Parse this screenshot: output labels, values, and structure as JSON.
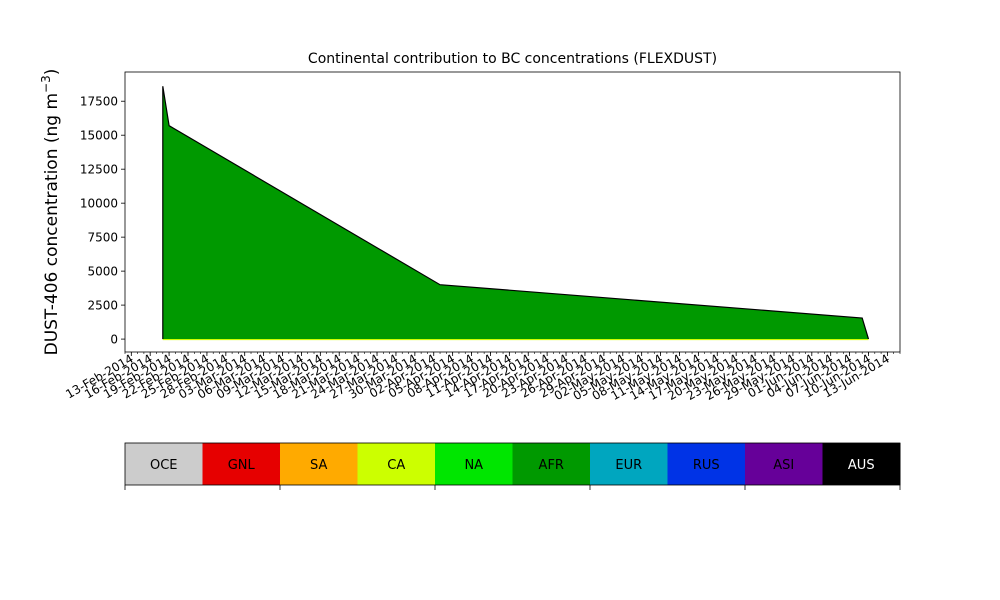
{
  "chart_data": {
    "type": "area",
    "title": "Continental contribution to BC concentrations (FLEXDUST)",
    "xlabel": "",
    "ylabel": "DUST-406 concentration (ng m",
    "ylabel_superscript": "−3",
    "ylabel_suffix": ")",
    "ylim": [
      -950,
      19650
    ],
    "xlim": [
      "2014-02-12",
      "2014-06-15"
    ],
    "yticks": [
      0,
      2500,
      5000,
      7500,
      10000,
      12500,
      15000,
      17500
    ],
    "ytick_labels": [
      "0",
      "2500",
      "5000",
      "7500",
      "10000",
      "12500",
      "15000",
      "17500"
    ],
    "xtick_dates": [
      "2014-02-13",
      "2014-02-16",
      "2014-02-19",
      "2014-02-22",
      "2014-02-25",
      "2014-02-28",
      "2014-03-03",
      "2014-03-06",
      "2014-03-09",
      "2014-03-12",
      "2014-03-15",
      "2014-03-18",
      "2014-03-21",
      "2014-03-24",
      "2014-03-27",
      "2014-03-30",
      "2014-04-02",
      "2014-04-05",
      "2014-04-08",
      "2014-04-11",
      "2014-04-14",
      "2014-04-17",
      "2014-04-20",
      "2014-04-23",
      "2014-04-26",
      "2014-04-29",
      "2014-05-02",
      "2014-05-05",
      "2014-05-08",
      "2014-05-11",
      "2014-05-14",
      "2014-05-17",
      "2014-05-20",
      "2014-05-23",
      "2014-05-26",
      "2014-05-29",
      "2014-06-01",
      "2014-06-04",
      "2014-06-07",
      "2014-06-10",
      "2014-06-13"
    ],
    "xtick_labels": [
      "13-Feb-2014",
      "16-Feb-2014",
      "19-Feb-2014",
      "22-Feb-2014",
      "25-Feb-2014",
      "28-Feb-2014",
      "03-Mar-2014",
      "06-Mar-2014",
      "09-Mar-2014",
      "12-Mar-2014",
      "15-Mar-2014",
      "18-Mar-2014",
      "21-Mar-2014",
      "24-Mar-2014",
      "27-Mar-2014",
      "30-Mar-2014",
      "02-Apr-2014",
      "05-Apr-2014",
      "08-Apr-2014",
      "11-Apr-2014",
      "14-Apr-2014",
      "17-Apr-2014",
      "20-Apr-2014",
      "23-Apr-2014",
      "26-Apr-2014",
      "29-Apr-2014",
      "02-May-2014",
      "05-May-2014",
      "08-May-2014",
      "11-May-2014",
      "14-May-2014",
      "17-May-2014",
      "20-May-2014",
      "23-May-2014",
      "26-May-2014",
      "29-May-2014",
      "01-Jun-2014",
      "04-Jun-2014",
      "07-Jun-2014",
      "10-Jun-2014",
      "13-Jun-2014"
    ],
    "x": [
      "2014-02-18",
      "2014-02-18",
      "2014-02-19",
      "2014-04-03",
      "2014-06-09",
      "2014-06-09",
      "2014-06-10"
    ],
    "series": [
      {
        "name": "AFR",
        "color": "#009900",
        "values": [
          0,
          18600,
          15700,
          4000,
          1550,
          1550,
          0
        ]
      }
    ],
    "grid": false,
    "legend": {
      "placement": "below",
      "entries": [
        {
          "label": "OCE",
          "color": "#cccccc",
          "text_color": "#000000"
        },
        {
          "label": "GNL",
          "color": "#e60000",
          "text_color": "#000000"
        },
        {
          "label": "SA",
          "color": "#ffaa00",
          "text_color": "#000000"
        },
        {
          "label": "CA",
          "color": "#ccff00",
          "text_color": "#000000"
        },
        {
          "label": "NA",
          "color": "#00e600",
          "text_color": "#000000"
        },
        {
          "label": "AFR",
          "color": "#009900",
          "text_color": "#000000"
        },
        {
          "label": "EUR",
          "color": "#00a6bf",
          "text_color": "#000000"
        },
        {
          "label": "RUS",
          "color": "#0033e6",
          "text_color": "#000000"
        },
        {
          "label": "ASI",
          "color": "#660099",
          "text_color": "#000000"
        },
        {
          "label": "AUS",
          "color": "#000000",
          "text_color": "#ffffff"
        }
      ]
    }
  }
}
